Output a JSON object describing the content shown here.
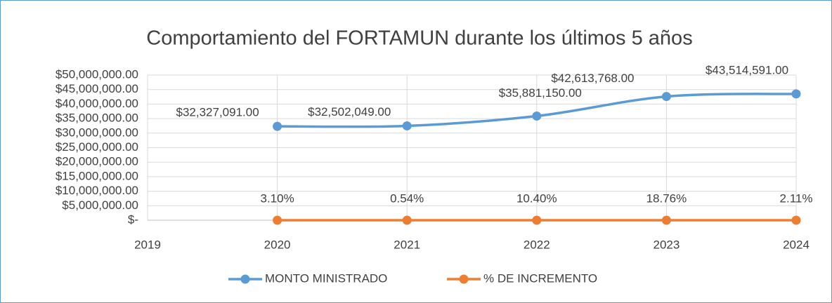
{
  "chart_data": {
    "type": "line",
    "title": "Comportamiento del FORTAMUN durante los últimos 5 años",
    "x": [
      2020,
      2021,
      2022,
      2023,
      2024
    ],
    "series": [
      {
        "name": "MONTO MINISTRADO",
        "color": "#5b9bd5",
        "values": [
          32327091,
          32502049,
          35881150,
          42613768,
          43514591
        ],
        "value_labels": [
          "$32,327,091.00",
          "$32,502,049.00",
          "$35,881,150.00",
          "$42,613,768.00",
          "$43,514,591.00"
        ]
      },
      {
        "name": "% DE INCREMENTO",
        "color": "#ed7d31",
        "values": [
          0.031,
          0.0054,
          0.104,
          0.1876,
          0.0211
        ],
        "value_labels": [
          "3.10%",
          "0.54%",
          "10.40%",
          "18.76%",
          "2.11%"
        ]
      }
    ],
    "xlim": [
      2019,
      2024
    ],
    "xticks": [
      2019,
      2020,
      2021,
      2022,
      2023,
      2024
    ],
    "ylim": [
      0,
      50000000
    ],
    "yticks": [
      {
        "value": 0,
        "label": "$-"
      },
      {
        "value": 5000000,
        "label": "$5,000,000.00"
      },
      {
        "value": 10000000,
        "label": "$10,000,000.00"
      },
      {
        "value": 15000000,
        "label": "$15,000,000.00"
      },
      {
        "value": 20000000,
        "label": "$20,000,000.00"
      },
      {
        "value": 25000000,
        "label": "$25,000,000.00"
      },
      {
        "value": 30000000,
        "label": "$30,000,000.00"
      },
      {
        "value": 35000000,
        "label": "$35,000,000.00"
      },
      {
        "value": 40000000,
        "label": "$40,000,000.00"
      },
      {
        "value": 45000000,
        "label": "$45,000,000.00"
      },
      {
        "value": 50000000,
        "label": "$50,000,000.00"
      }
    ],
    "grid": true,
    "legend": "bottom"
  }
}
